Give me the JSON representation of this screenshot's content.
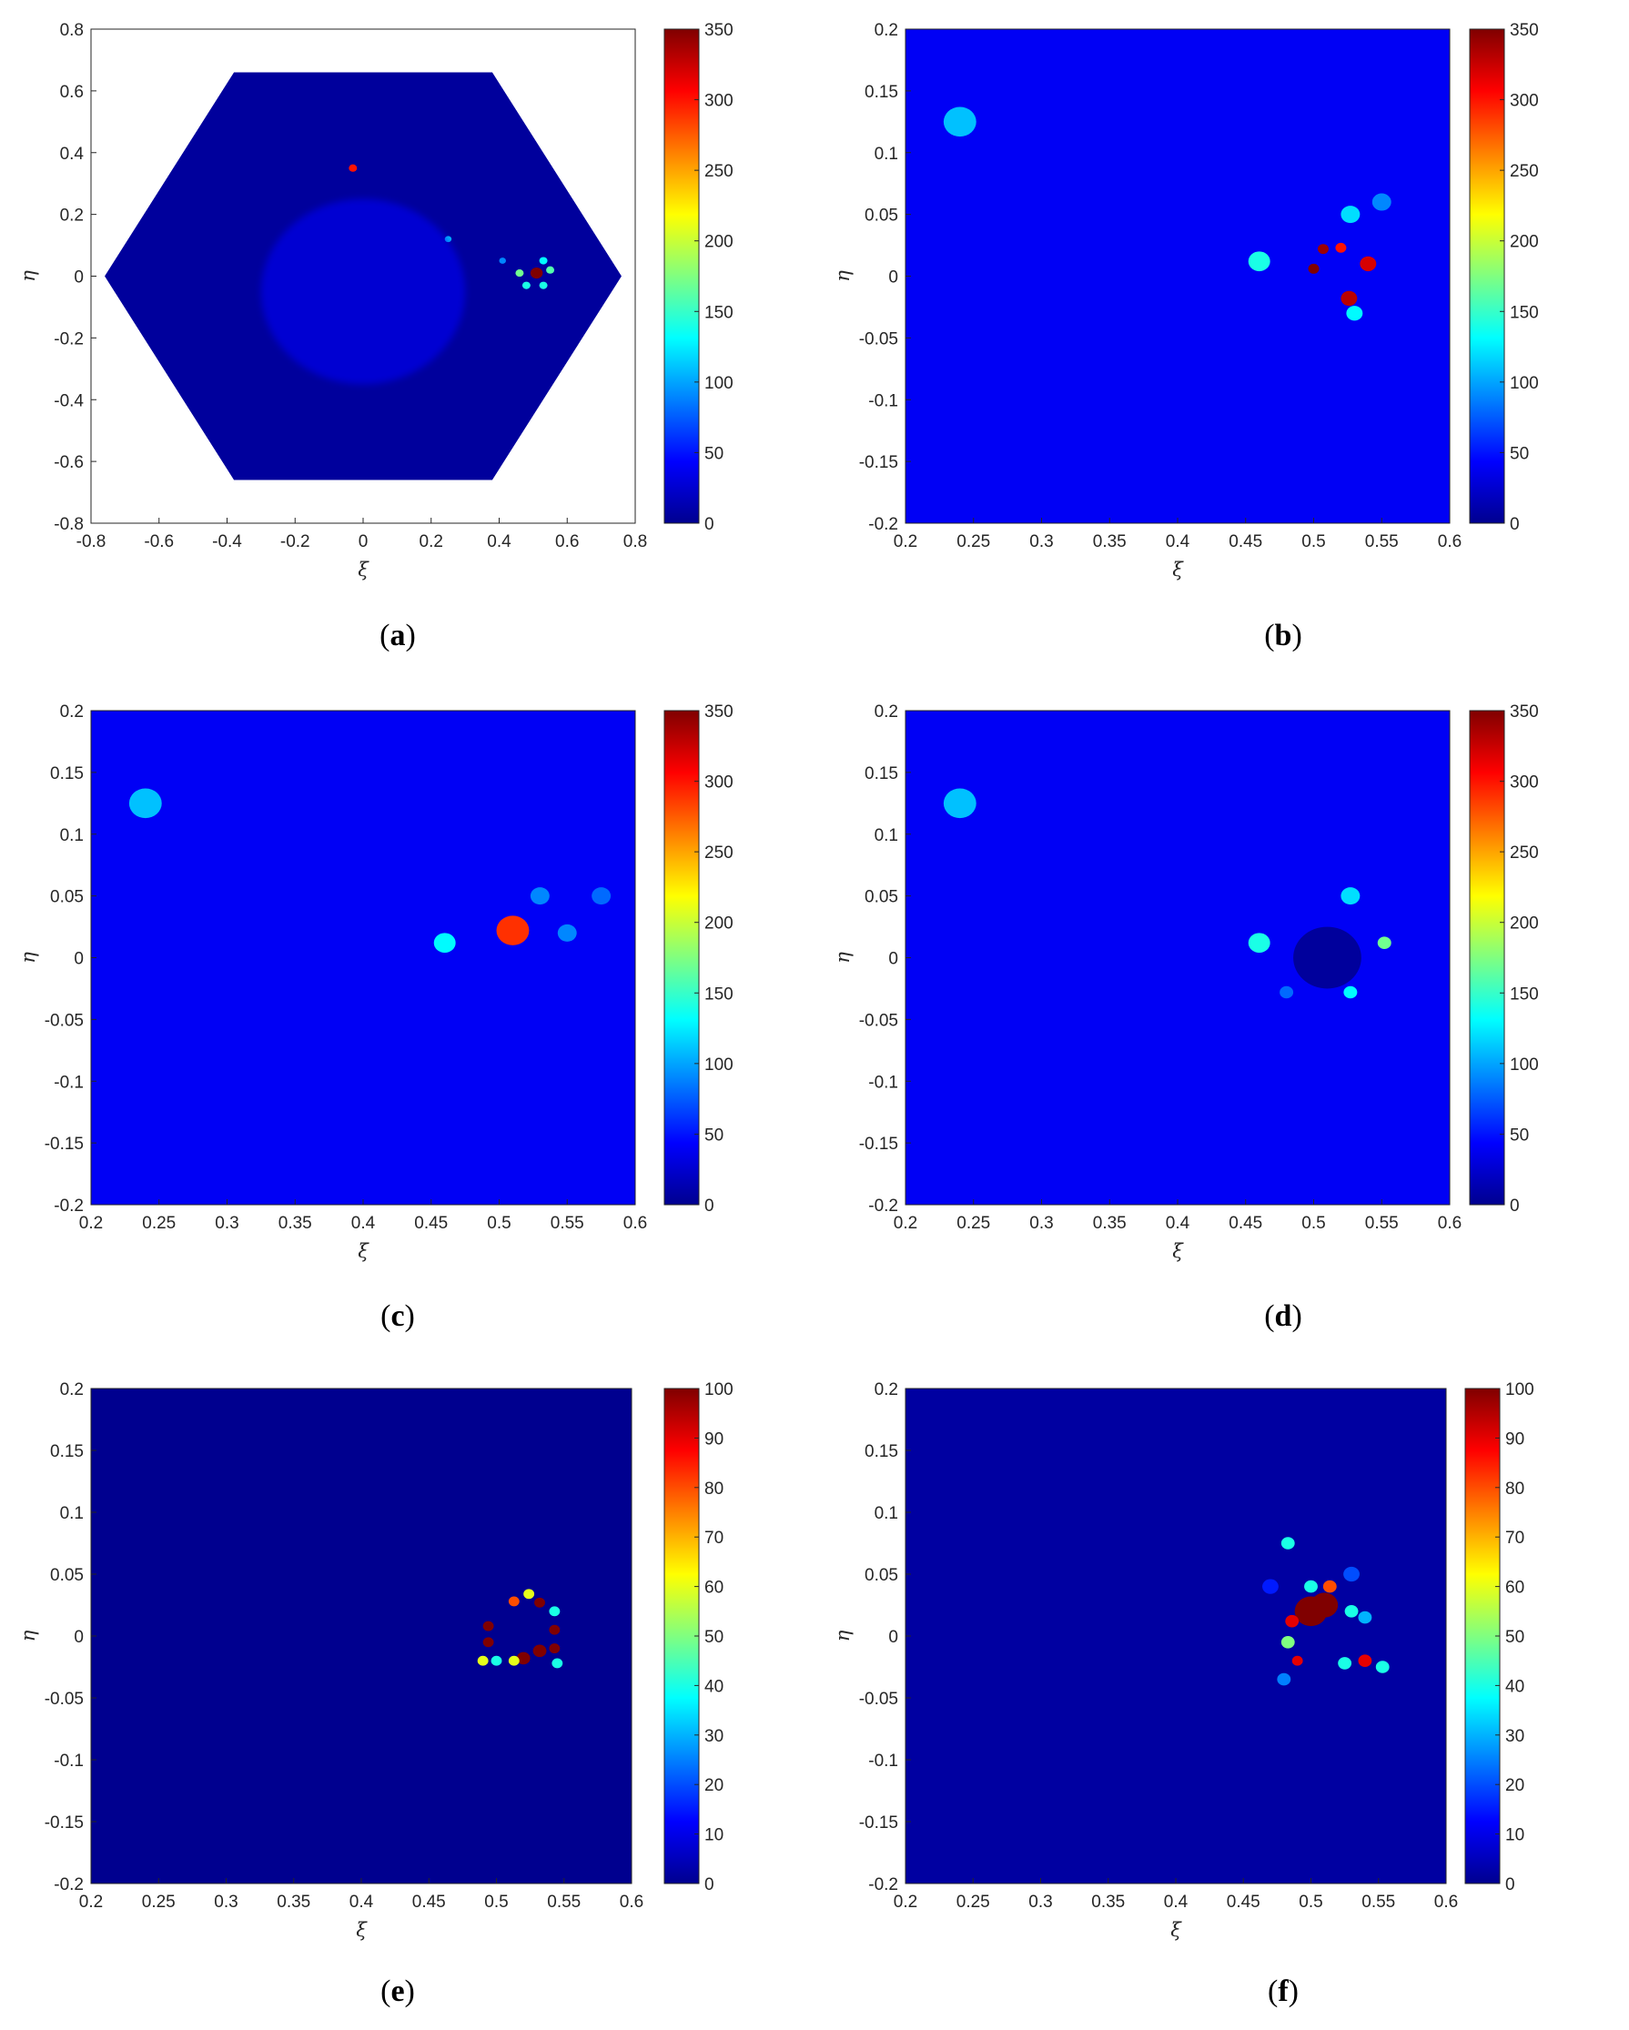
{
  "colorbar": {
    "colormap": "jet",
    "ticks_350": [
      "0",
      "50",
      "100",
      "150",
      "200",
      "250",
      "300",
      "350"
    ],
    "ticks_100": [
      "0",
      "10",
      "20",
      "30",
      "40",
      "50",
      "60",
      "70",
      "80",
      "90",
      "100"
    ],
    "colors": [
      "#00008f",
      "#0000ff",
      "#0080ff",
      "#00ffff",
      "#80ff80",
      "#ffff00",
      "#ff8000",
      "#ff0000",
      "#800000"
    ]
  },
  "chart_data": [
    {
      "type": "heatmap",
      "caption_letter": "a",
      "xlabel": "ξ",
      "ylabel": "η",
      "xlim": [
        -0.8,
        0.8
      ],
      "ylim": [
        -0.8,
        0.8
      ],
      "xticks": [
        "-0.8",
        "-0.6",
        "-0.4",
        "-0.2",
        "0",
        "0.2",
        "0.4",
        "0.6",
        "0.8"
      ],
      "yticks": [
        "-0.8",
        "-0.6",
        "-0.4",
        "-0.2",
        "0",
        "0.2",
        "0.4",
        "0.6",
        "0.8"
      ],
      "clim": [
        0,
        350
      ],
      "domain_shape": "hexagon",
      "background_value": 5,
      "features": [
        {
          "x": -0.03,
          "y": 0.35,
          "value": 300,
          "r": 0.012
        },
        {
          "x": 0.51,
          "y": 0.01,
          "value": 350,
          "r": 0.018
        },
        {
          "x": 0.46,
          "y": 0.01,
          "value": 170,
          "r": 0.012
        },
        {
          "x": 0.55,
          "y": 0.02,
          "value": 160,
          "r": 0.012
        },
        {
          "x": 0.53,
          "y": 0.05,
          "value": 130,
          "r": 0.012
        },
        {
          "x": 0.48,
          "y": -0.03,
          "value": 140,
          "r": 0.012
        },
        {
          "x": 0.53,
          "y": -0.03,
          "value": 140,
          "r": 0.012
        },
        {
          "x": 0.25,
          "y": 0.12,
          "value": 110,
          "r": 0.01
        },
        {
          "x": 0.41,
          "y": 0.05,
          "value": 90,
          "r": 0.01
        },
        {
          "x": 0.0,
          "y": -0.05,
          "value": 45,
          "r": 0.3
        }
      ]
    },
    {
      "type": "heatmap",
      "caption_letter": "b",
      "xlabel": "ξ",
      "ylabel": "η",
      "xlim": [
        0.2,
        0.6
      ],
      "ylim": [
        -0.2,
        0.2
      ],
      "xticks": [
        "0.2",
        "0.25",
        "0.3",
        "0.35",
        "0.4",
        "0.45",
        "0.5",
        "0.55",
        "0.6"
      ],
      "yticks": [
        "-0.2",
        "-0.15",
        "-0.1",
        "-0.05",
        "0",
        "0.05",
        "0.1",
        "0.15",
        "0.2"
      ],
      "clim": [
        0,
        350
      ],
      "background_value": 40,
      "features": [
        {
          "x": 0.24,
          "y": 0.125,
          "value": 110,
          "r": 0.012
        },
        {
          "x": 0.46,
          "y": 0.012,
          "value": 140,
          "r": 0.008
        },
        {
          "x": 0.527,
          "y": 0.05,
          "value": 120,
          "r": 0.007
        },
        {
          "x": 0.52,
          "y": 0.023,
          "value": 300,
          "r": 0.004
        },
        {
          "x": 0.507,
          "y": 0.022,
          "value": 340,
          "r": 0.004
        },
        {
          "x": 0.5,
          "y": 0.006,
          "value": 350,
          "r": 0.004
        },
        {
          "x": 0.54,
          "y": 0.01,
          "value": 320,
          "r": 0.006
        },
        {
          "x": 0.526,
          "y": -0.018,
          "value": 330,
          "r": 0.006
        },
        {
          "x": 0.53,
          "y": -0.03,
          "value": 130,
          "r": 0.006
        },
        {
          "x": 0.55,
          "y": 0.06,
          "value": 90,
          "r": 0.007
        }
      ]
    },
    {
      "type": "heatmap",
      "caption_letter": "c",
      "xlabel": "ξ",
      "ylabel": "η",
      "xlim": [
        0.2,
        0.6
      ],
      "ylim": [
        -0.2,
        0.2
      ],
      "xticks": [
        "0.2",
        "0.25",
        "0.3",
        "0.35",
        "0.4",
        "0.45",
        "0.5",
        "0.55",
        "0.6"
      ],
      "yticks": [
        "-0.2",
        "-0.15",
        "-0.1",
        "-0.05",
        "0",
        "0.05",
        "0.1",
        "0.15",
        "0.2"
      ],
      "clim": [
        0,
        350
      ],
      "background_value": 40,
      "features": [
        {
          "x": 0.24,
          "y": 0.125,
          "value": 110,
          "r": 0.012
        },
        {
          "x": 0.51,
          "y": 0.022,
          "value": 290,
          "r": 0.012
        },
        {
          "x": 0.46,
          "y": 0.012,
          "value": 130,
          "r": 0.008
        },
        {
          "x": 0.53,
          "y": 0.05,
          "value": 90,
          "r": 0.007
        },
        {
          "x": 0.55,
          "y": 0.02,
          "value": 90,
          "r": 0.007
        },
        {
          "x": 0.575,
          "y": 0.05,
          "value": 80,
          "r": 0.007
        }
      ]
    },
    {
      "type": "heatmap",
      "caption_letter": "d",
      "xlabel": "ξ",
      "ylabel": "η",
      "xlim": [
        0.2,
        0.6
      ],
      "ylim": [
        -0.2,
        0.2
      ],
      "xticks": [
        "0.2",
        "0.25",
        "0.3",
        "0.35",
        "0.4",
        "0.45",
        "0.5",
        "0.55",
        "0.6"
      ],
      "yticks": [
        "-0.2",
        "-0.15",
        "-0.1",
        "-0.05",
        "0",
        "0.05",
        "0.1",
        "0.15",
        "0.2"
      ],
      "clim": [
        0,
        350
      ],
      "background_value": 40,
      "features": [
        {
          "x": 0.24,
          "y": 0.125,
          "value": 110,
          "r": 0.012
        },
        {
          "x": 0.46,
          "y": 0.012,
          "value": 140,
          "r": 0.008
        },
        {
          "x": 0.527,
          "y": 0.05,
          "value": 120,
          "r": 0.007
        },
        {
          "x": 0.552,
          "y": 0.012,
          "value": 170,
          "r": 0.005
        },
        {
          "x": 0.527,
          "y": -0.028,
          "value": 130,
          "r": 0.005
        },
        {
          "x": 0.48,
          "y": -0.028,
          "value": 80,
          "r": 0.005
        },
        {
          "x": 0.51,
          "y": 0.0,
          "value": 5,
          "r": 0.025
        }
      ]
    },
    {
      "type": "heatmap",
      "caption_letter": "e",
      "xlabel": "ξ",
      "ylabel": "η",
      "xlim": [
        0.2,
        0.6
      ],
      "ylim": [
        -0.2,
        0.2
      ],
      "xticks": [
        "0.2",
        "0.25",
        "0.3",
        "0.35",
        "0.4",
        "0.45",
        "0.5",
        "0.55",
        "0.6"
      ],
      "yticks": [
        "-0.2",
        "-0.15",
        "-0.1",
        "-0.05",
        "0",
        "0.05",
        "0.1",
        "0.15",
        "0.2"
      ],
      "clim": [
        0,
        100
      ],
      "background_value": 0,
      "features": [
        {
          "x": 0.494,
          "y": 0.008,
          "value": 100,
          "r": 0.004
        },
        {
          "x": 0.494,
          "y": -0.005,
          "value": 100,
          "r": 0.004
        },
        {
          "x": 0.49,
          "y": -0.02,
          "value": 60,
          "r": 0.004
        },
        {
          "x": 0.5,
          "y": -0.02,
          "value": 40,
          "r": 0.004
        },
        {
          "x": 0.513,
          "y": 0.028,
          "value": 80,
          "r": 0.004
        },
        {
          "x": 0.524,
          "y": 0.034,
          "value": 60,
          "r": 0.004
        },
        {
          "x": 0.532,
          "y": 0.027,
          "value": 100,
          "r": 0.004
        },
        {
          "x": 0.543,
          "y": 0.02,
          "value": 40,
          "r": 0.004
        },
        {
          "x": 0.543,
          "y": 0.005,
          "value": 100,
          "r": 0.004
        },
        {
          "x": 0.52,
          "y": -0.018,
          "value": 100,
          "r": 0.005
        },
        {
          "x": 0.532,
          "y": -0.012,
          "value": 100,
          "r": 0.005
        },
        {
          "x": 0.543,
          "y": -0.01,
          "value": 100,
          "r": 0.004
        },
        {
          "x": 0.513,
          "y": -0.02,
          "value": 60,
          "r": 0.004
        },
        {
          "x": 0.545,
          "y": -0.022,
          "value": 40,
          "r": 0.004
        }
      ]
    },
    {
      "type": "heatmap",
      "caption_letter": "f",
      "xlabel": "ξ",
      "ylabel": "η",
      "xlim": [
        0.2,
        0.6
      ],
      "ylim": [
        -0.2,
        0.2
      ],
      "xticks": [
        "0.2",
        "0.25",
        "0.3",
        "0.35",
        "0.4",
        "0.45",
        "0.5",
        "0.55",
        "0.6"
      ],
      "yticks": [
        "-0.2",
        "-0.15",
        "-0.1",
        "-0.05",
        "0",
        "0.05",
        "0.1",
        "0.15",
        "0.2"
      ],
      "clim": [
        0,
        100
      ],
      "background_value": 2,
      "features": [
        {
          "x": 0.5,
          "y": 0.02,
          "value": 100,
          "r": 0.012
        },
        {
          "x": 0.51,
          "y": 0.025,
          "value": 100,
          "r": 0.01
        },
        {
          "x": 0.486,
          "y": 0.012,
          "value": 90,
          "r": 0.005
        },
        {
          "x": 0.483,
          "y": -0.005,
          "value": 50,
          "r": 0.005
        },
        {
          "x": 0.49,
          "y": -0.02,
          "value": 90,
          "r": 0.004
        },
        {
          "x": 0.5,
          "y": 0.04,
          "value": 40,
          "r": 0.005
        },
        {
          "x": 0.514,
          "y": 0.04,
          "value": 80,
          "r": 0.005
        },
        {
          "x": 0.53,
          "y": 0.02,
          "value": 40,
          "r": 0.005
        },
        {
          "x": 0.54,
          "y": 0.015,
          "value": 30,
          "r": 0.005
        },
        {
          "x": 0.54,
          "y": -0.02,
          "value": 90,
          "r": 0.005
        },
        {
          "x": 0.525,
          "y": -0.022,
          "value": 40,
          "r": 0.005
        },
        {
          "x": 0.553,
          "y": -0.025,
          "value": 40,
          "r": 0.005
        },
        {
          "x": 0.483,
          "y": 0.075,
          "value": 40,
          "r": 0.005
        },
        {
          "x": 0.48,
          "y": -0.035,
          "value": 25,
          "r": 0.005
        },
        {
          "x": 0.53,
          "y": 0.05,
          "value": 20,
          "r": 0.006
        },
        {
          "x": 0.47,
          "y": 0.04,
          "value": 15,
          "r": 0.006
        }
      ]
    }
  ]
}
